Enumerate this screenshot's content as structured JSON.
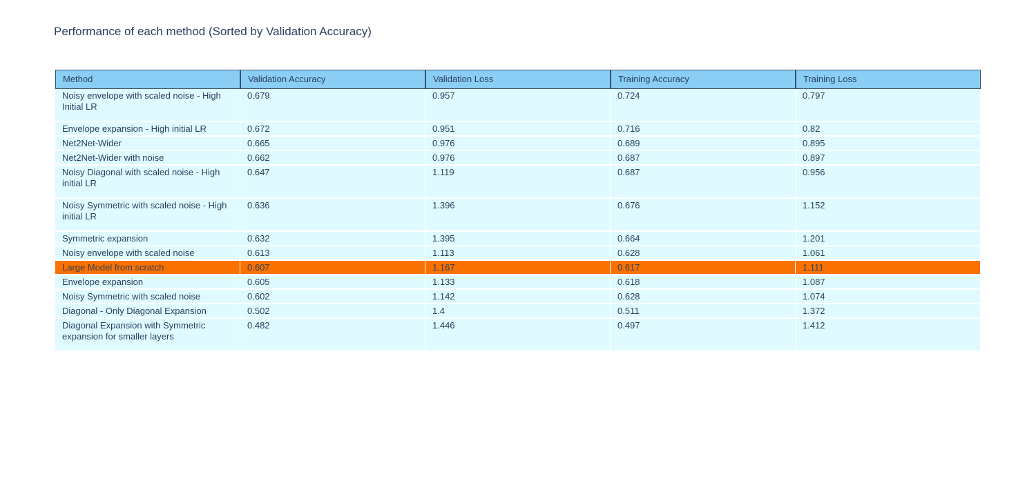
{
  "page_title": "Performance of each method (Sorted by Validation Accuracy)",
  "colors": {
    "page_background": "#FFFFFF",
    "header_fill": "#8BCEF5",
    "header_border": "#33536B",
    "cell_fill": "#DFFBFF",
    "row_separator": "#FFFFFF",
    "highlight_fill": "#F97100",
    "text": "#2A3F5F"
  },
  "chart_data": {
    "type": "table",
    "title": "Performance of each method (Sorted by Validation Accuracy)",
    "columns": [
      "Method",
      "Validation Accuracy",
      "Validation Loss",
      "Training Accuracy",
      "Training Loss"
    ],
    "rows": [
      [
        "Noisy envelope with scaled noise - High Initial LR",
        0.679,
        0.957,
        0.724,
        0.797
      ],
      [
        "Envelope expansion - High initial LR",
        0.672,
        0.951,
        0.716,
        0.82
      ],
      [
        "Net2Net-Wider",
        0.665,
        0.976,
        0.689,
        0.895
      ],
      [
        "Net2Net-Wider with noise",
        0.662,
        0.976,
        0.687,
        0.897
      ],
      [
        "Noisy Diagonal with scaled noise - High initial LR",
        0.647,
        1.119,
        0.687,
        0.956
      ],
      [
        "Noisy Symmetric with scaled noise - High initial LR",
        0.636,
        1.396,
        0.676,
        1.152
      ],
      [
        "Symmetric expansion",
        0.632,
        1.395,
        0.664,
        1.201
      ],
      [
        "Noisy envelope with scaled noise",
        0.613,
        1.113,
        0.628,
        1.061
      ],
      [
        "Large Model from scratch",
        0.607,
        1.167,
        0.617,
        1.111
      ],
      [
        "Envelope expansion",
        0.605,
        1.133,
        0.618,
        1.087
      ],
      [
        "Noisy Symmetric with scaled noise",
        0.602,
        1.142,
        0.628,
        1.074
      ],
      [
        "Diagonal - Only Diagonal Expansion",
        0.502,
        1.4,
        0.511,
        1.372
      ],
      [
        "Diagonal Expansion with Symmetric expansion for smaller layers",
        0.482,
        1.446,
        0.497,
        1.412
      ]
    ],
    "highlight_row_index": 8,
    "highlighted_row": "Large Model from scratch",
    "sorted_by": "Validation Accuracy",
    "sort_order": "descending",
    "legend": "none",
    "grid": "row and column separators (white), dark-bordered header"
  }
}
